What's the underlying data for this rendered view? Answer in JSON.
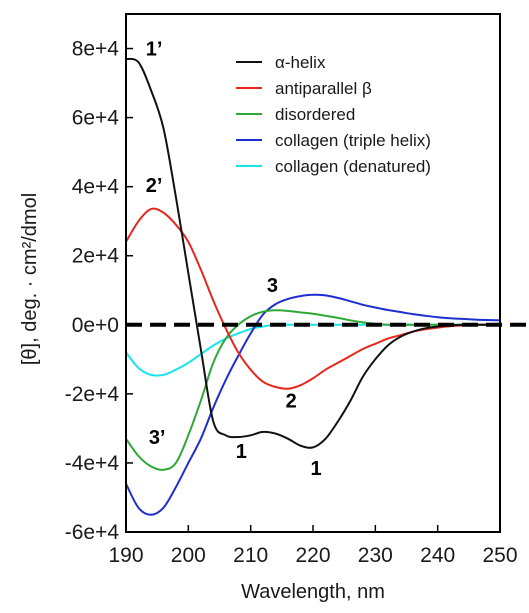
{
  "chart_data": {
    "type": "line",
    "xlabel": "Wavelength, nm",
    "ylabel": "[θ], deg. · cm²/dmol",
    "xlim": [
      190,
      250
    ],
    "ylim": [
      -60000,
      90000
    ],
    "x_ticks": [
      190,
      200,
      210,
      220,
      230,
      240,
      250
    ],
    "x_tick_labels": [
      "190",
      "200",
      "210",
      "220",
      "230",
      "240",
      "250"
    ],
    "y_ticks": [
      80000,
      60000,
      40000,
      20000,
      0,
      -20000,
      -40000,
      -60000
    ],
    "y_tick_labels": [
      "8e+4",
      "6e+4",
      "4e+4",
      "2e+4",
      "0e+0",
      "-2e+4",
      "-4e+4",
      "-6e+4"
    ],
    "legend_position": "top-right",
    "grid": false,
    "reference_line": {
      "y": 0,
      "style": "dashed",
      "color": "#000000"
    },
    "series": [
      {
        "name": "α-helix",
        "color": "#111111",
        "x": [
          190,
          192,
          194,
          196,
          198,
          200,
          202,
          204,
          206,
          208,
          210,
          212,
          214,
          216,
          218,
          220,
          222,
          224,
          226,
          228,
          230,
          232,
          234,
          236,
          238,
          240,
          242,
          244,
          246,
          248,
          250
        ],
        "y": [
          77000,
          76000,
          68000,
          57000,
          37000,
          15000,
          -7000,
          -28000,
          -32000,
          -32500,
          -32000,
          -31000,
          -31500,
          -33000,
          -35000,
          -35500,
          -33000,
          -28000,
          -22000,
          -15000,
          -10000,
          -6000,
          -3500,
          -2000,
          -1000,
          -500,
          -200,
          0,
          0,
          0,
          0
        ]
      },
      {
        "name": "antiparallel β",
        "color": "#e8271c",
        "x": [
          190,
          192,
          194,
          196,
          198,
          200,
          202,
          204,
          206,
          208,
          210,
          212,
          214,
          216,
          218,
          220,
          222,
          224,
          226,
          228,
          230,
          232,
          234,
          236,
          238,
          240,
          242,
          244,
          246,
          248,
          250
        ],
        "y": [
          24000,
          30000,
          33500,
          32500,
          29000,
          24000,
          16000,
          7000,
          -1000,
          -8000,
          -13000,
          -16500,
          -18000,
          -18500,
          -17500,
          -15500,
          -13000,
          -11000,
          -9000,
          -7000,
          -5500,
          -4000,
          -3000,
          -2000,
          -1300,
          -800,
          -400,
          -200,
          0,
          0,
          0
        ]
      },
      {
        "name": "disordered",
        "color": "#2ea836",
        "x": [
          190,
          192,
          194,
          196,
          198,
          200,
          202,
          204,
          206,
          208,
          210,
          212,
          214,
          216,
          218,
          220,
          222,
          224,
          226,
          228,
          230,
          232,
          234,
          236,
          238,
          240,
          242,
          244,
          246,
          248,
          250
        ],
        "y": [
          -33000,
          -38000,
          -41000,
          -42000,
          -40000,
          -32000,
          -22000,
          -11000,
          -4000,
          0,
          2500,
          3800,
          4200,
          4000,
          3600,
          3200,
          2600,
          2000,
          1300,
          700,
          300,
          0,
          0,
          0,
          0,
          0,
          0,
          0,
          0,
          0,
          0
        ]
      },
      {
        "name": "collagen (triple helix)",
        "color": "#1e2fd0",
        "x": [
          190,
          192,
          194,
          196,
          198,
          200,
          202,
          204,
          206,
          208,
          210,
          212,
          214,
          216,
          218,
          220,
          222,
          224,
          226,
          228,
          230,
          232,
          234,
          236,
          238,
          240,
          242,
          244,
          246,
          248,
          250
        ],
        "y": [
          -46000,
          -53000,
          -55000,
          -53000,
          -47000,
          -40000,
          -33000,
          -24000,
          -16000,
          -9000,
          -2500,
          3000,
          6000,
          7500,
          8300,
          8700,
          8500,
          7800,
          6800,
          5800,
          5000,
          4300,
          3700,
          3100,
          2600,
          2200,
          1900,
          1700,
          1500,
          1400,
          1300
        ]
      },
      {
        "name": "collagen (denatured)",
        "color": "#18e4ea",
        "x": [
          190,
          192,
          194,
          196,
          198,
          200,
          202,
          204,
          206,
          208,
          210,
          212,
          214,
          216,
          218,
          220,
          222,
          224,
          226,
          228,
          230,
          232,
          234,
          236,
          238,
          240,
          242,
          244,
          246,
          248,
          250
        ],
        "y": [
          -8000,
          -12500,
          -14500,
          -14500,
          -13000,
          -11000,
          -8500,
          -6000,
          -4000,
          -2500,
          -1200,
          -500,
          0,
          0,
          0,
          0,
          0,
          0,
          0,
          0,
          0,
          0,
          0,
          0,
          0,
          0,
          0,
          0,
          0,
          0,
          0
        ]
      }
    ],
    "annotations": [
      {
        "text": "1’",
        "x": 194.5,
        "y": 78000
      },
      {
        "text": "2’",
        "x": 194.5,
        "y": 38500
      },
      {
        "text": "3",
        "x": 213.5,
        "y": 9500
      },
      {
        "text": "2",
        "x": 216.5,
        "y": -24000
      },
      {
        "text": "3’",
        "x": 195,
        "y": -34500
      },
      {
        "text": "1",
        "x": 208.5,
        "y": -38500
      },
      {
        "text": "1",
        "x": 220.5,
        "y": -43500
      }
    ]
  }
}
